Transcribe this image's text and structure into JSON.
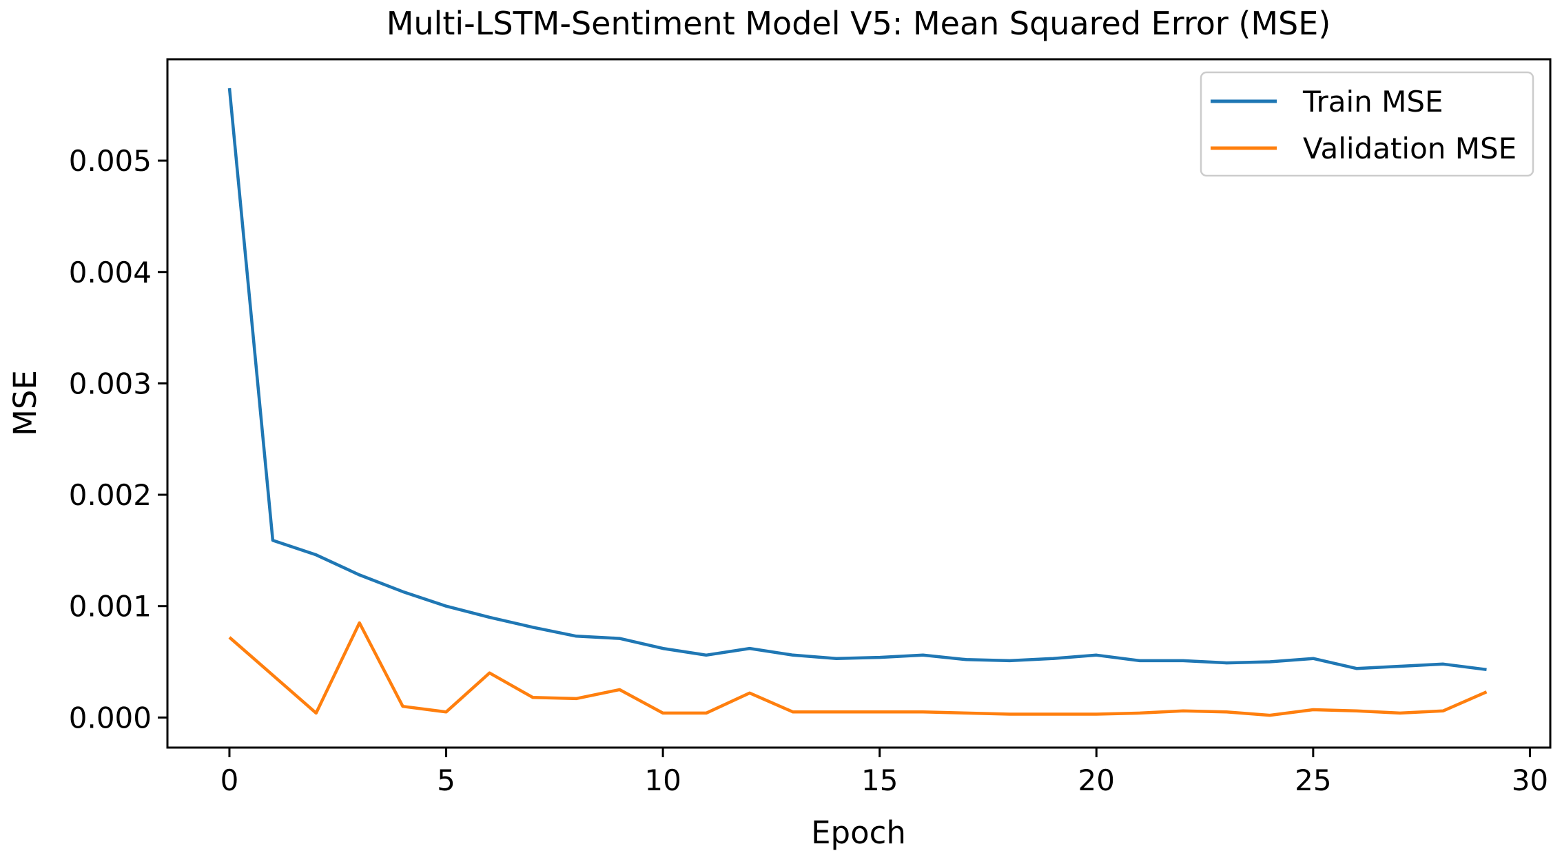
{
  "figure": {
    "title": "Multi-LSTM-Sentiment Model V5: Mean Squared Error (MSE)",
    "xlabel": "Epoch",
    "ylabel": "MSE"
  },
  "legend": {
    "items": [
      {
        "label": "Train MSE",
        "color": "#1f77b4"
      },
      {
        "label": "Validation MSE",
        "color": "#ff7f0e"
      }
    ]
  },
  "chart_data": {
    "type": "line",
    "title": "Multi-LSTM-Sentiment Model V5: Mean Squared Error (MSE)",
    "xlabel": "Epoch",
    "ylabel": "MSE",
    "grid": false,
    "legend_position": "upper right",
    "x": [
      0,
      1,
      2,
      3,
      4,
      5,
      6,
      7,
      8,
      9,
      10,
      11,
      12,
      13,
      14,
      15,
      16,
      17,
      18,
      19,
      20,
      21,
      22,
      23,
      24,
      25,
      26,
      27,
      28,
      29
    ],
    "series": [
      {
        "name": "Train MSE",
        "color": "#1f77b4",
        "values": [
          0.00565,
          0.00159,
          0.00146,
          0.00128,
          0.00113,
          0.001,
          0.0009,
          0.00081,
          0.00073,
          0.00071,
          0.00062,
          0.00056,
          0.00062,
          0.00056,
          0.00053,
          0.00054,
          0.00056,
          0.00052,
          0.00051,
          0.00053,
          0.00056,
          0.00051,
          0.00051,
          0.00049,
          0.0005,
          0.00053,
          0.00044,
          0.00046,
          0.00048,
          0.00043
        ]
      },
      {
        "name": "Validation MSE",
        "color": "#ff7f0e",
        "values": [
          0.00072,
          0.00038,
          4e-05,
          0.00085,
          0.0001,
          5e-05,
          0.0004,
          0.00018,
          0.00017,
          0.00025,
          4e-05,
          4e-05,
          0.00022,
          5e-05,
          5e-05,
          5e-05,
          5e-05,
          4e-05,
          3e-05,
          3e-05,
          3e-05,
          4e-05,
          6e-05,
          5e-05,
          2e-05,
          7e-05,
          6e-05,
          4e-05,
          6e-05,
          0.00023
        ]
      }
    ],
    "xticks": [
      0,
      5,
      10,
      15,
      20,
      25,
      30
    ],
    "yticks": [
      0.0,
      0.001,
      0.002,
      0.003,
      0.004,
      0.005
    ],
    "ytick_decimals": 3,
    "xlim": [
      -1.43,
      30.47
    ],
    "ylim": [
      -0.00027,
      0.00591
    ]
  }
}
